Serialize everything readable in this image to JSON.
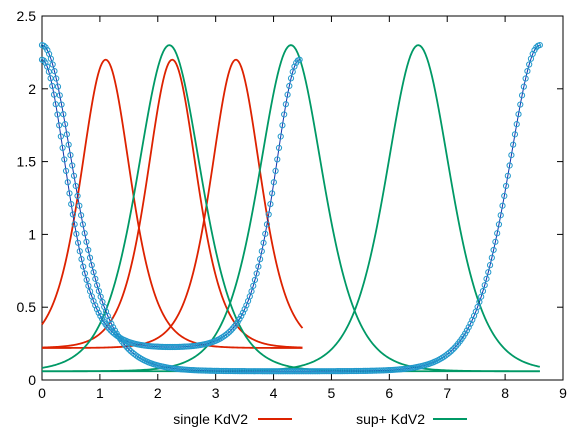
{
  "chart_data": {
    "type": "line",
    "xlim": [
      0,
      9
    ],
    "ylim": [
      0,
      2.5
    ],
    "xticks": [
      "0",
      "1",
      "2",
      "3",
      "4",
      "5",
      "6",
      "7",
      "8",
      "9"
    ],
    "yticks": [
      "0",
      "0.5",
      "1",
      "1.5",
      "2",
      "2.5"
    ],
    "grid": false,
    "legend_position": "bottom",
    "series": [
      {
        "name": "single KdV2",
        "color": "#dd2200",
        "peak_values": [
          2.2,
          2.2,
          2.2
        ],
        "peak_x": [
          1.1,
          2.25,
          3.35
        ],
        "baseline": 0.22,
        "x_range": [
          0,
          4.5
        ],
        "x": [
          0,
          0.5,
          1.1,
          1.5,
          2.0,
          2.5,
          3.0,
          3.35,
          4.0,
          4.5
        ],
        "values_peak_1": [
          0.7,
          1.4,
          2.2,
          1.55,
          0.7,
          0.36,
          0.26,
          0.23,
          0.22,
          0.22
        ]
      },
      {
        "name": "sup+ KdV2",
        "color": "#009966",
        "peak_values": [
          2.3,
          2.3,
          2.3
        ],
        "peak_x": [
          2.2,
          4.3,
          6.5
        ],
        "baseline": 0.06,
        "x_range": [
          0,
          8.6
        ],
        "x": [
          0,
          1.0,
          2.2,
          3.0,
          4.0,
          4.3,
          5.0,
          6.0,
          6.5,
          7.0,
          8.0,
          8.6
        ],
        "values_peak_2": [
          0.07,
          0.18,
          0.7,
          1.45,
          2.15,
          2.3,
          1.55,
          0.45,
          0.22,
          0.12,
          0.07,
          0.06
        ]
      },
      {
        "name": "markers",
        "marker": "circle",
        "color": "#2299cc",
        "traces_peak_x": [
          0,
          4.45,
          8.6
        ],
        "x": [
          0,
          0.5,
          1.0,
          1.5,
          2.0,
          2.5,
          3.0,
          3.5,
          4.0,
          4.45
        ],
        "values": [
          2.2,
          1.55,
          0.8,
          0.38,
          0.24,
          0.22,
          0.38,
          0.9,
          1.7,
          2.2
        ]
      }
    ]
  }
}
